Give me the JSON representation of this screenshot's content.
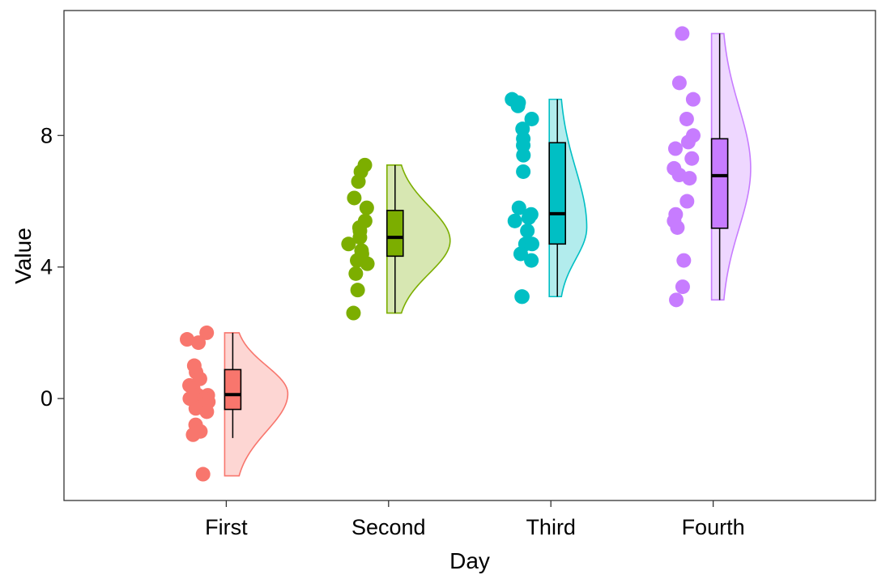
{
  "chart_data": {
    "type": "raincloud",
    "title": "",
    "xlabel": "Day",
    "ylabel": "Value",
    "ylim": [
      -3.1,
      11.8
    ],
    "yticks": [
      0,
      4,
      8
    ],
    "categories": [
      "First",
      "Second",
      "Third",
      "Fourth"
    ],
    "colors": [
      "#F8766D",
      "#7CAE00",
      "#00BFC4",
      "#C77CFF"
    ],
    "groups": [
      {
        "name": "First",
        "color": "#F8766D",
        "points": [
          2.0,
          1.8,
          1.7,
          1.0,
          0.8,
          0.6,
          0.4,
          0.3,
          0.1,
          0.1,
          0.0,
          0.0,
          -0.1,
          -0.2,
          -0.3,
          -0.4,
          -0.8,
          -1.0,
          -1.1,
          -2.3
        ],
        "box": {
          "min": -1.2,
          "q1": -0.33,
          "median": 0.12,
          "q3": 0.88,
          "max": 2.0
        },
        "density": {
          "lo": -2.35,
          "hi": 2.0,
          "mode": 0.15,
          "peak_relative_width": 1.0
        }
      },
      {
        "name": "Second",
        "color": "#7CAE00",
        "points": [
          7.1,
          6.9,
          6.6,
          6.1,
          5.8,
          5.4,
          5.2,
          5.1,
          4.9,
          4.7,
          4.5,
          4.4,
          4.2,
          4.1,
          3.8,
          3.3,
          2.6
        ],
        "box": {
          "min": 2.6,
          "q1": 4.33,
          "median": 4.9,
          "q3": 5.72,
          "max": 7.1
        },
        "density": {
          "lo": 2.6,
          "hi": 7.1,
          "mode": 4.8,
          "peak_relative_width": 1.0
        }
      },
      {
        "name": "Third",
        "color": "#00BFC4",
        "points": [
          9.1,
          9.0,
          8.9,
          8.5,
          8.2,
          7.9,
          7.7,
          7.4,
          6.9,
          5.8,
          5.6,
          5.5,
          5.4,
          5.1,
          4.7,
          4.7,
          4.4,
          4.2,
          3.1,
          3.1
        ],
        "box": {
          "min": 3.1,
          "q1": 4.7,
          "median": 5.62,
          "q3": 7.78,
          "max": 9.1
        },
        "density": {
          "lo": 3.1,
          "hi": 9.1,
          "mode": 5.2,
          "peak_relative_width": 0.52
        }
      },
      {
        "name": "Fourth",
        "color": "#C77CFF",
        "points": [
          11.1,
          9.6,
          9.1,
          8.5,
          8.0,
          7.8,
          7.6,
          7.3,
          7.0,
          6.8,
          6.7,
          6.0,
          5.6,
          5.4,
          5.2,
          4.2,
          3.4,
          3.0
        ],
        "box": {
          "min": 3.0,
          "q1": 5.18,
          "median": 6.78,
          "q3": 7.9,
          "max": 11.1
        },
        "density": {
          "lo": 3.0,
          "hi": 11.1,
          "mode": 7.0,
          "peak_relative_width": 0.55
        }
      }
    ],
    "legend": "none",
    "grid": false
  }
}
